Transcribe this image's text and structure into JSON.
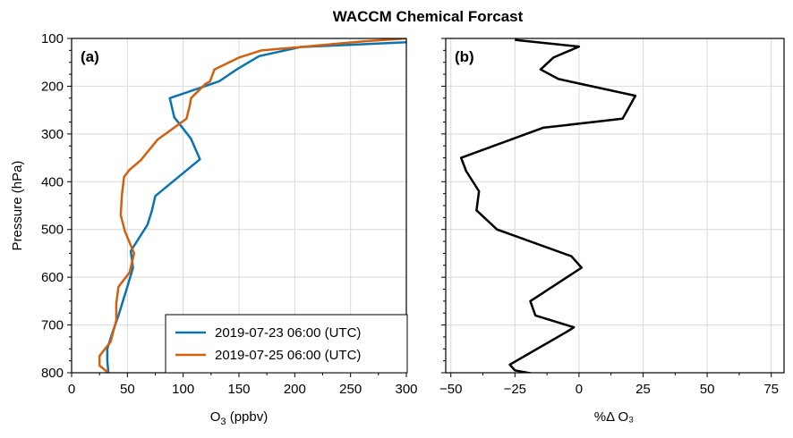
{
  "title": "WACCM Chemical Forcast",
  "colors": {
    "series1": "#0a74b3",
    "series2": "#d2600f",
    "diff": "#000000",
    "grid": "#d9d9d9"
  },
  "chart_data": [
    {
      "type": "line",
      "panel_label": "(a)",
      "xlabel_main": "O",
      "xlabel_sub": "3",
      "xlabel_rest": " (ppbv)",
      "ylabel": "Pressure (hPa)",
      "xlim": [
        0,
        300
      ],
      "ylim": [
        800,
        100
      ],
      "y_inverted": true,
      "xticks": [
        0,
        50,
        100,
        150,
        200,
        250,
        300
      ],
      "yticks": [
        100,
        200,
        300,
        400,
        500,
        600,
        700,
        800
      ],
      "grid": true,
      "legend_position": "lower-right",
      "series": [
        {
          "name": "2019-07-23 06:00 (UTC)",
          "x": [
            33,
            32,
            32,
            36,
            42,
            50,
            55,
            53,
            68,
            72,
            75,
            115,
            107,
            92,
            88,
            132,
            148,
            168,
            205,
            300
          ],
          "y": [
            800,
            775,
            750,
            720,
            680,
            620,
            580,
            545,
            490,
            460,
            430,
            353,
            310,
            265,
            225,
            190,
            165,
            137,
            118,
            108
          ]
        },
        {
          "name": "2019-07-25 06:00 (UTC)",
          "x": [
            33,
            25,
            25,
            35,
            40,
            40,
            42,
            52,
            56,
            48,
            44,
            45,
            47,
            52,
            62,
            77,
            103,
            106,
            107,
            120,
            124,
            128,
            150,
            170,
            205,
            262,
            300
          ],
          "y": [
            800,
            785,
            765,
            735,
            690,
            655,
            620,
            590,
            550,
            505,
            470,
            430,
            390,
            375,
            355,
            312,
            268,
            240,
            225,
            195,
            190,
            165,
            140,
            125,
            118,
            106,
            100
          ]
        }
      ]
    },
    {
      "type": "line",
      "panel_label": "(b)",
      "xlabel": "%Δ  O₃",
      "xlim": [
        -52,
        80
      ],
      "ylim": [
        800,
        100
      ],
      "y_inverted": true,
      "xticks": [
        -50,
        -25,
        0,
        25,
        50,
        75
      ],
      "grid": true,
      "series": [
        {
          "x": [
            -25,
            0,
            -10,
            -15,
            -8,
            22,
            17,
            -14,
            -46,
            -44,
            -39,
            -40,
            -32,
            -3,
            1,
            -19,
            -17,
            -2,
            -5,
            -18,
            -27,
            -25,
            -8
          ],
          "y": [
            103,
            117,
            140,
            165,
            185,
            220,
            268,
            287,
            350,
            378,
            420,
            460,
            500,
            556,
            580,
            650,
            680,
            705,
            715,
            755,
            783,
            795,
            812
          ]
        }
      ]
    }
  ]
}
